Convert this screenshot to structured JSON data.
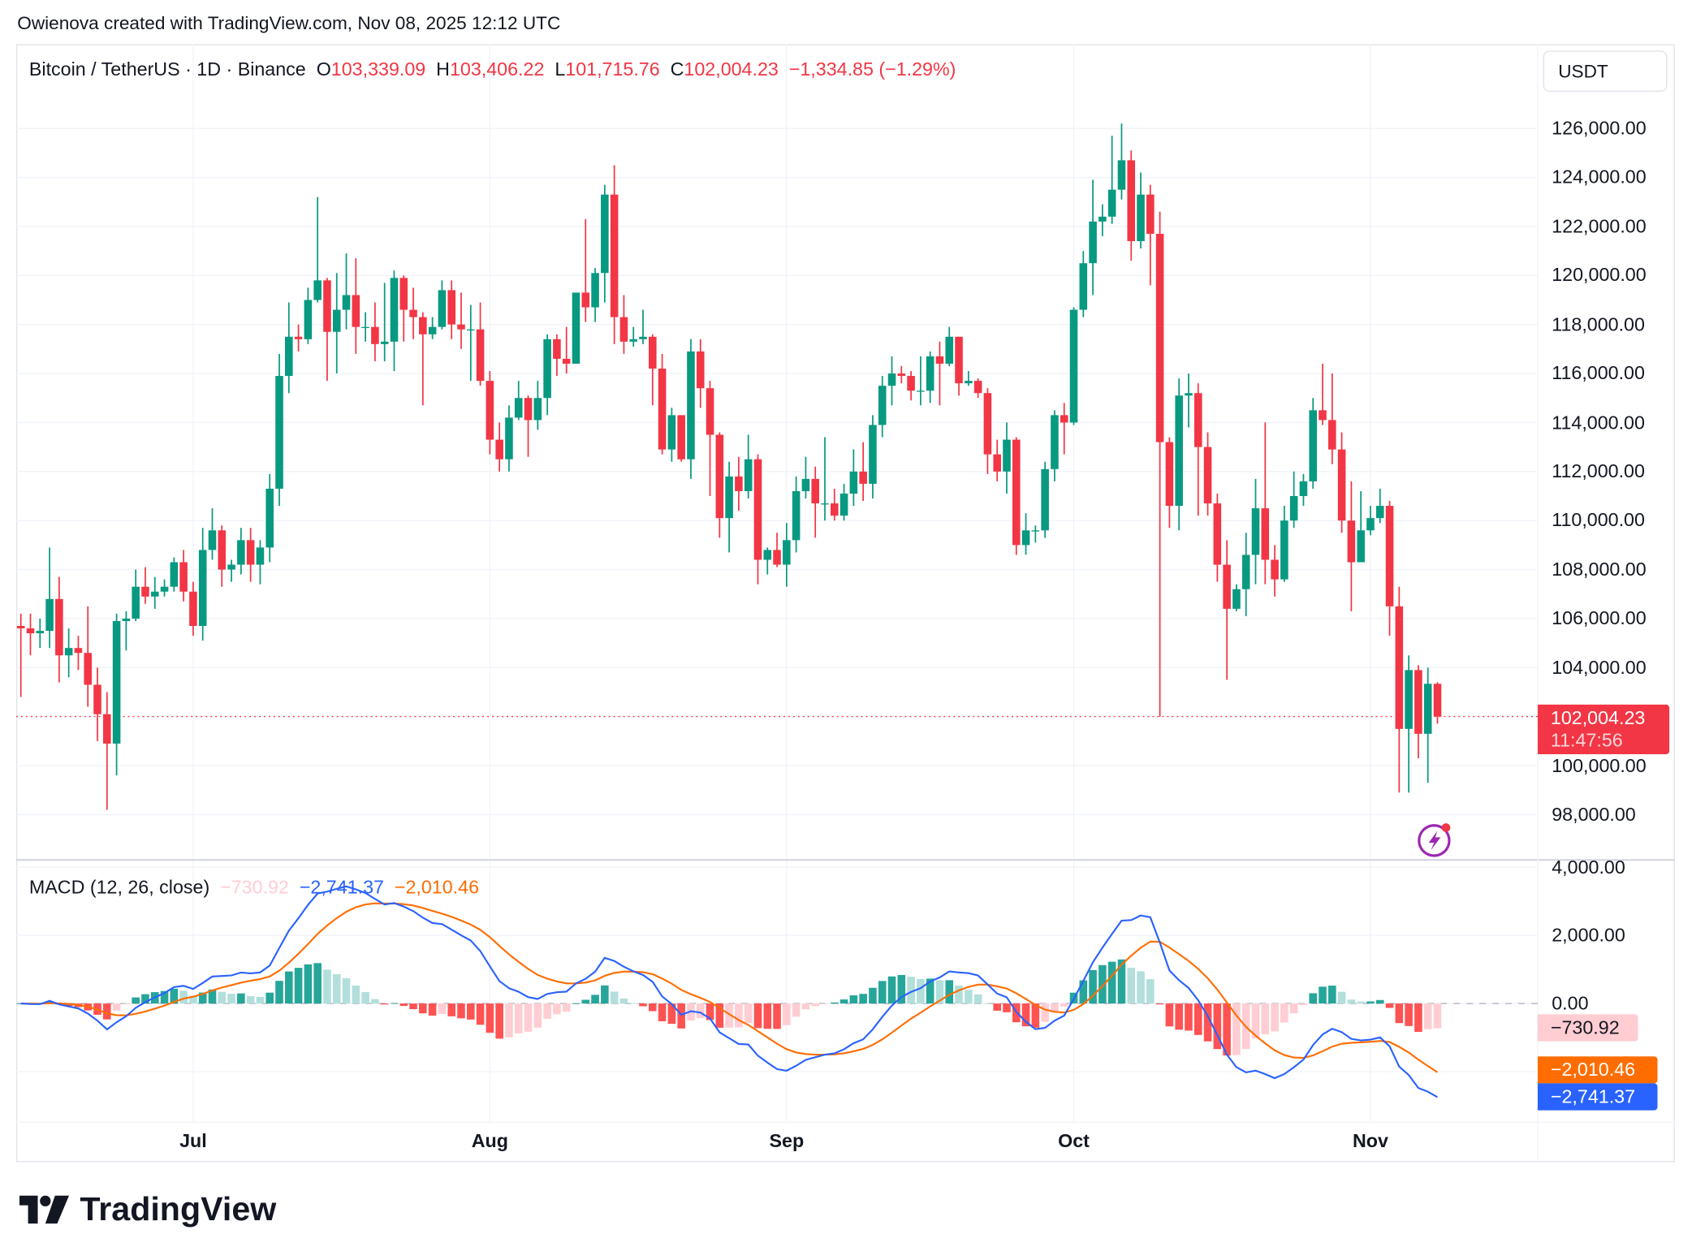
{
  "credit": "Owienova created with TradingView.com, Nov 08, 2025 12:12 UTC",
  "legend": {
    "symbol": "Bitcoin / TetherUS · 1D · Binance",
    "o_label": "O",
    "o": "103,339.09",
    "h_label": "H",
    "h": "103,406.22",
    "l_label": "L",
    "l": "101,715.76",
    "c_label": "C",
    "c": "102,004.23",
    "change": "−1,334.85 (−1.29%)"
  },
  "currency": "USDT",
  "last_price_tag": {
    "price": "102,004.23",
    "countdown": "11:47:56"
  },
  "macd_legend": {
    "title": "MACD (12, 26, close)",
    "hist": "−730.92",
    "macd": "−2,741.37",
    "signal": "−2,010.46"
  },
  "macd_tags": {
    "hist": "−730.92",
    "signal": "−2,010.46",
    "macd": "−2,741.37"
  },
  "logo": "TradingView",
  "colors": {
    "up": "#089981",
    "down": "#F23645",
    "macd": "#2962FF",
    "signal": "#FF6D00",
    "hist_up_strong": "#26A69A",
    "hist_up_weak": "#B2DFDB",
    "hist_down_strong": "#FF5252",
    "hist_down_weak": "#FFCDD2",
    "alert_icon": "#9c27b0"
  },
  "chart_data": [
    {
      "type": "candlestick",
      "start_date": "2025-06-13",
      "interval": "1D",
      "close": [
        105600,
        105400,
        105500,
        106800,
        104500,
        104800,
        104600,
        103300,
        102100,
        100900,
        105900,
        106000,
        107300,
        106900,
        107100,
        107300,
        108300,
        107100,
        105700,
        108800,
        109600,
        108000,
        108200,
        109200,
        108200,
        108900,
        111300,
        115900,
        117500,
        117400,
        119000,
        119800,
        117700,
        118600,
        119200,
        117900,
        117900,
        117200,
        117300,
        119900,
        118600,
        118300,
        117600,
        117900,
        119400,
        118000,
        117800,
        117800,
        115700,
        113300,
        112500,
        114200,
        115000,
        114100,
        115000,
        117400,
        116600,
        116400,
        119300,
        118700,
        120100,
        123300,
        118300,
        117300,
        117400,
        117500,
        116200,
        112900,
        114300,
        112500,
        116900,
        115400,
        113500,
        110100,
        111800,
        111200,
        112500,
        108400,
        108800,
        108200,
        109200,
        111200,
        111700,
        110700,
        110700,
        110200,
        111100,
        112000,
        111500,
        113900,
        115500,
        116000,
        115900,
        115300,
        115300,
        116700,
        116400,
        117500,
        115600,
        115700,
        115200,
        112700,
        112000,
        113300,
        109000,
        109600,
        109600,
        112100,
        114300,
        114000,
        118600,
        120500,
        122200,
        122400,
        123500,
        124700,
        121400,
        123300,
        121700,
        113200,
        110600,
        115100,
        115200,
        113000,
        110700,
        108200,
        106400,
        107200,
        108600,
        110500,
        108400,
        107600,
        110000,
        111000,
        111600,
        114500,
        114100,
        112900,
        110000,
        108300,
        109600,
        110100,
        110600,
        106500,
        101500,
        103900,
        101300,
        103339.09,
        102004.23
      ],
      "high": [
        106200,
        106200,
        106000,
        108900,
        107700,
        105600,
        105300,
        106500,
        104000,
        103000,
        106200,
        106300,
        108000,
        108100,
        107700,
        107600,
        108500,
        108800,
        107500,
        109700,
        110500,
        109800,
        108400,
        109700,
        109700,
        109200,
        111900,
        116800,
        118900,
        118000,
        119500,
        123200,
        119900,
        120100,
        120900,
        120700,
        118500,
        118900,
        119700,
        120200,
        120000,
        119500,
        118500,
        118300,
        119800,
        119800,
        119300,
        118800,
        118900,
        116100,
        114000,
        114700,
        115700,
        115100,
        115700,
        117600,
        117600,
        117900,
        119300,
        122300,
        120300,
        123700,
        124500,
        119200,
        117900,
        118600,
        117600,
        116800,
        114600,
        114300,
        117400,
        117400,
        115700,
        113600,
        112400,
        112600,
        113500,
        112700,
        108900,
        109500,
        109900,
        111800,
        112600,
        112200,
        113400,
        111300,
        111500,
        112900,
        113200,
        114300,
        115900,
        116700,
        116300,
        116100,
        116700,
        116900,
        117300,
        117900,
        117500,
        116100,
        115800,
        115400,
        113300,
        114000,
        113400,
        110300,
        109800,
        112400,
        114500,
        114800,
        118700,
        121000,
        123900,
        122900,
        125700,
        126200,
        125100,
        124200,
        123700,
        122600,
        113400,
        115800,
        116000,
        115600,
        113600,
        111100,
        109200,
        107400,
        109500,
        111700,
        114000,
        109000,
        110600,
        112000,
        111900,
        115000,
        116400,
        116000,
        113600,
        111600,
        111200,
        110600,
        111300,
        110800,
        107300,
        104500,
        104100,
        104000,
        103406.22
      ],
      "low": [
        102800,
        104500,
        104800,
        104800,
        103400,
        103600,
        103900,
        102400,
        101000,
        98200,
        99600,
        104700,
        105900,
        106600,
        106400,
        106900,
        107100,
        106700,
        105300,
        105100,
        108400,
        107300,
        107500,
        107800,
        107500,
        107400,
        108300,
        110600,
        115200,
        116900,
        117200,
        118900,
        115700,
        116000,
        117800,
        116800,
        117300,
        116500,
        116500,
        116100,
        117300,
        117400,
        114700,
        117400,
        117800,
        117400,
        117000,
        115700,
        115500,
        112700,
        112000,
        112000,
        114100,
        112600,
        113700,
        114300,
        115900,
        116000,
        116400,
        118100,
        118100,
        118900,
        117200,
        116800,
        117100,
        117200,
        114700,
        112700,
        112400,
        112400,
        111700,
        114600,
        111000,
        109300,
        108700,
        110400,
        110900,
        107400,
        107800,
        108100,
        107300,
        108700,
        110900,
        109300,
        110000,
        110000,
        110000,
        110600,
        110800,
        110900,
        113400,
        114700,
        115600,
        114900,
        114700,
        114800,
        114700,
        116300,
        115100,
        115500,
        115000,
        111900,
        111600,
        111100,
        108600,
        108600,
        109100,
        109300,
        111600,
        112700,
        113900,
        118300,
        119200,
        121600,
        122100,
        123100,
        120600,
        121100,
        119600,
        102000,
        109700,
        109600,
        113800,
        110200,
        110200,
        107500,
        103500,
        106300,
        106100,
        107400,
        107400,
        106900,
        107500,
        109700,
        110600,
        111300,
        113900,
        112300,
        109500,
        106300,
        108600,
        109400,
        109900,
        105300,
        98900,
        98900,
        100300,
        99300,
        101715.76
      ],
      "y_ticks": [
        "126,000.00",
        "124,000.00",
        "122,000.00",
        "120,000.00",
        "118,000.00",
        "116,000.00",
        "114,000.00",
        "112,000.00",
        "110,000.00",
        "108,000.00",
        "106,000.00",
        "104,000.00",
        "100,000.00",
        "98,000.00"
      ],
      "ylim": [
        97000,
        127500
      ],
      "x_ticks": [
        "Jul",
        "Aug",
        "Sep",
        "Oct",
        "Nov"
      ],
      "grid": true
    },
    {
      "type": "macd",
      "params": "12, 26, close",
      "y_ticks": [
        "4,000.00",
        "2,000.00",
        "0.00"
      ],
      "ylim": [
        -3500,
        4200
      ],
      "last": {
        "histogram": -730.92,
        "macd": -2741.37,
        "signal": -2010.46
      }
    }
  ]
}
